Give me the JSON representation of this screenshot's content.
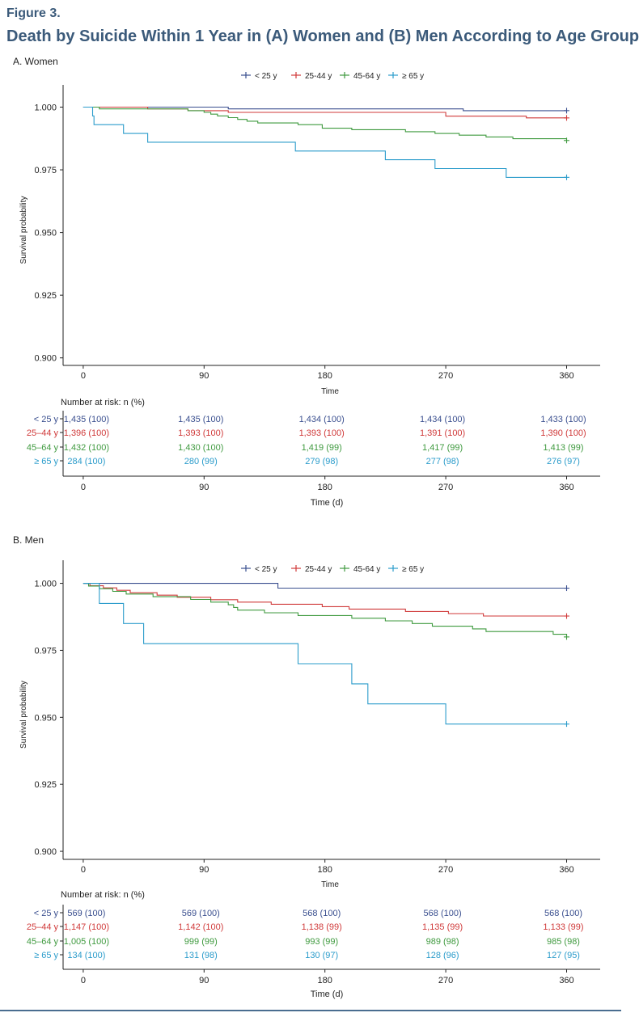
{
  "figure_label": "Figure 3.",
  "figure_title": "Death by Suicide Within 1 Year in (A) Women and (B) Men According to Age Group",
  "colors": {
    "lt25": "#3a4f8f",
    "25_44": "#d03a3a",
    "45_64": "#3f9a3f",
    "ge65": "#2b9ccb"
  },
  "chart_data": [
    {
      "type": "line",
      "panel_title": "A. Women",
      "xlabel": "Time",
      "ylabel": "Survival probability",
      "xlim": [
        -15,
        385
      ],
      "ylim": [
        0.897,
        1.005
      ],
      "x_ticks": [
        0,
        90,
        180,
        270,
        360
      ],
      "y_ticks": [
        0.9,
        0.925,
        0.95,
        0.975,
        1.0
      ],
      "y_tick_labels": [
        "0.900",
        "0.925",
        "0.950",
        "0.975",
        "1.000"
      ],
      "legend_position": "top",
      "series": [
        {
          "name": "< 25 y",
          "color": "#3a4f8f",
          "x": [
            0,
            108,
            283,
            360
          ],
          "y": [
            1.0,
            0.9993,
            0.9986,
            0.9986
          ]
        },
        {
          "name": "25-44 y",
          "color": "#d03a3a",
          "x": [
            0,
            48,
            78,
            108,
            180,
            270,
            330,
            360
          ],
          "y": [
            1.0,
            0.9993,
            0.9986,
            0.9979,
            0.9979,
            0.9964,
            0.9957,
            0.9957
          ]
        },
        {
          "name": "45-64 y",
          "color": "#3f9a3f",
          "x": [
            0,
            12,
            78,
            90,
            95,
            100,
            108,
            115,
            122,
            130,
            160,
            178,
            200,
            240,
            262,
            280,
            300,
            320,
            360
          ],
          "y": [
            1.0,
            0.9993,
            0.9986,
            0.9979,
            0.9972,
            0.9965,
            0.9958,
            0.9951,
            0.9944,
            0.9937,
            0.993,
            0.9916,
            0.991,
            0.9902,
            0.9895,
            0.9888,
            0.9881,
            0.9874,
            0.9867
          ]
        },
        {
          "name": "≥ 65 y",
          "color": "#2b9ccb",
          "x": [
            0,
            7,
            8,
            30,
            48,
            158,
            225,
            262,
            315,
            360
          ],
          "y": [
            1.0,
            0.9965,
            0.993,
            0.9895,
            0.986,
            0.9825,
            0.979,
            0.9755,
            0.972,
            0.972
          ]
        }
      ],
      "risk_table": {
        "title": "Number at risk: n (%)",
        "xlabel": "Time (d)",
        "rows": [
          {
            "label": "< 25 y",
            "color": "#3a4f8f",
            "values": [
              "1,435 (100)",
              "1,435 (100)",
              "1,434 (100)",
              "1,434 (100)",
              "1,433 (100)"
            ]
          },
          {
            "label": "25–44 y",
            "color": "#d03a3a",
            "values": [
              "1,396 (100)",
              "1,393 (100)",
              "1,393 (100)",
              "1,391 (100)",
              "1,390 (100)"
            ]
          },
          {
            "label": "45–64 y",
            "color": "#3f9a3f",
            "values": [
              "1,432 (100)",
              "1,430 (100)",
              "1,419 (99)",
              "1,417 (99)",
              "1,413 (99)"
            ]
          },
          {
            "label": "≥ 65 y",
            "color": "#2b9ccb",
            "values": [
              "284 (100)",
              "280 (99)",
              "279 (98)",
              "277 (98)",
              "276 (97)"
            ]
          }
        ]
      }
    },
    {
      "type": "line",
      "panel_title": "B. Men",
      "xlabel": "Time",
      "ylabel": "Survival probability",
      "xlim": [
        -15,
        385
      ],
      "ylim": [
        0.897,
        1.005
      ],
      "x_ticks": [
        0,
        90,
        180,
        270,
        360
      ],
      "y_ticks": [
        0.9,
        0.925,
        0.95,
        0.975,
        1.0
      ],
      "y_tick_labels": [
        "0.900",
        "0.925",
        "0.950",
        "0.975",
        "1.000"
      ],
      "legend_position": "top",
      "series": [
        {
          "name": "< 25 y",
          "color": "#3a4f8f",
          "x": [
            0,
            145,
            360
          ],
          "y": [
            1.0,
            0.9982,
            0.9982
          ]
        },
        {
          "name": "25-44 y",
          "color": "#d03a3a",
          "x": [
            0,
            5,
            15,
            25,
            35,
            55,
            70,
            95,
            115,
            140,
            178,
            198,
            240,
            272,
            298,
            320,
            360
          ],
          "y": [
            1.0,
            0.9991,
            0.9983,
            0.9974,
            0.9965,
            0.9956,
            0.9948,
            0.9939,
            0.993,
            0.9922,
            0.9913,
            0.9904,
            0.9895,
            0.9887,
            0.9878,
            0.9878,
            0.9878
          ]
        },
        {
          "name": "45-64 y",
          "color": "#3f9a3f",
          "x": [
            0,
            4,
            12,
            22,
            32,
            52,
            80,
            95,
            108,
            112,
            115,
            120,
            135,
            160,
            200,
            225,
            235,
            245,
            260,
            290,
            300,
            310,
            350,
            360
          ],
          "y": [
            1.0,
            0.999,
            0.998,
            0.997,
            0.996,
            0.995,
            0.994,
            0.993,
            0.992,
            0.991,
            0.99,
            0.99,
            0.989,
            0.988,
            0.987,
            0.986,
            0.986,
            0.985,
            0.984,
            0.983,
            0.982,
            0.982,
            0.981,
            0.98
          ]
        },
        {
          "name": "≥ 65 y",
          "color": "#2b9ccb",
          "x": [
            0,
            12,
            30,
            45,
            160,
            200,
            212,
            270,
            360
          ],
          "y": [
            1.0,
            0.9925,
            0.985,
            0.9775,
            0.97,
            0.9625,
            0.955,
            0.9475,
            0.9475
          ]
        }
      ],
      "risk_table": {
        "title": "Number at risk: n (%)",
        "xlabel": "Time (d)",
        "rows": [
          {
            "label": "< 25 y",
            "color": "#3a4f8f",
            "values": [
              "569 (100)",
              "569 (100)",
              "568 (100)",
              "568 (100)",
              "568 (100)"
            ]
          },
          {
            "label": "25–44 y",
            "color": "#d03a3a",
            "values": [
              "1,147 (100)",
              "1,142 (100)",
              "1,138 (99)",
              "1,135 (99)",
              "1,133 (99)"
            ]
          },
          {
            "label": "45–64 y",
            "color": "#3f9a3f",
            "values": [
              "1,005 (100)",
              "999 (99)",
              "993 (99)",
              "989 (98)",
              "985 (98)"
            ]
          },
          {
            "label": "≥ 65 y",
            "color": "#2b9ccb",
            "values": [
              "134 (100)",
              "131 (98)",
              "130 (97)",
              "128 (96)",
              "127 (95)"
            ]
          }
        ]
      }
    }
  ]
}
